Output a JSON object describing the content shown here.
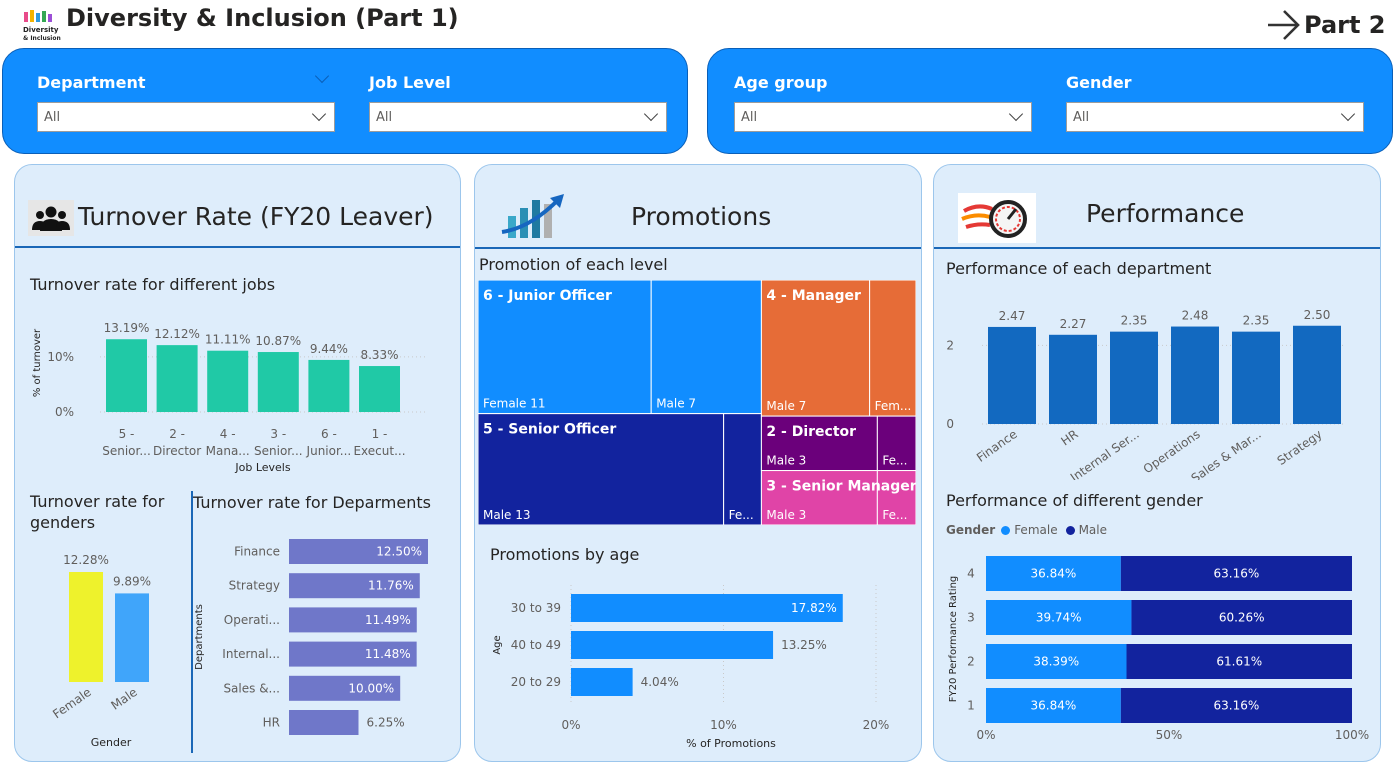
{
  "header": {
    "title": "Diversity & Inclusion (Part 1)",
    "logo_text_1": "Diversity",
    "logo_text_2": "& Inclusion",
    "nav_label": "Part 2"
  },
  "slicers": [
    {
      "label": "Department",
      "value": "All"
    },
    {
      "label": "Job Level",
      "value": "All"
    },
    {
      "label": "Age group",
      "value": "All"
    },
    {
      "label": "Gender",
      "value": "All"
    }
  ],
  "cards": {
    "turnover_title": "Turnover Rate (FY20 Leaver)",
    "promotions_title": "Promotions",
    "performance_title": "Performance"
  },
  "chart_data": [
    {
      "id": "turnover_jobs",
      "type": "bar",
      "title": "Turnover rate for different jobs",
      "categories": [
        [
          "5 -",
          "Senior..."
        ],
        [
          "2 -",
          "Director"
        ],
        [
          "4 -",
          "Mana..."
        ],
        [
          "3 -",
          "Senior..."
        ],
        [
          "6 -",
          "Junior..."
        ],
        [
          "1 -",
          "Execut..."
        ]
      ],
      "values": [
        13.19,
        12.12,
        11.11,
        10.87,
        9.44,
        8.33
      ],
      "labels": [
        "13.19%",
        "12.12%",
        "11.11%",
        "10.87%",
        "9.44%",
        "8.33%"
      ],
      "xlabel": "Job Levels",
      "ylabel": "% of turnover",
      "yticks": [
        {
          "v": 0,
          "label": "0%"
        },
        {
          "v": 10,
          "label": "10%"
        }
      ],
      "ylim": [
        0,
        14.5
      ],
      "color": "#20c9a6"
    },
    {
      "id": "turnover_gender",
      "type": "bar",
      "title": "Turnover rate for genders",
      "categories": [
        "Female",
        "Male"
      ],
      "values": [
        12.28,
        9.89
      ],
      "labels": [
        "12.28%",
        "9.89%"
      ],
      "colors": [
        "#eef22c",
        "#40a5fa"
      ],
      "xlabel": "Gender",
      "ylim": [
        0,
        12.28
      ]
    },
    {
      "id": "turnover_departments",
      "type": "bar",
      "orientation": "horizontal",
      "title": "Turnover rate for Deparments",
      "categories": [
        "Finance",
        "Strategy",
        "Operati...",
        "Internal...",
        "Sales &...",
        "HR"
      ],
      "values": [
        12.5,
        11.76,
        11.49,
        11.48,
        10.0,
        6.25
      ],
      "labels": [
        "12.50%",
        "11.76%",
        "11.49%",
        "11.48%",
        "10.00%",
        "6.25%"
      ],
      "ylabel": "Departments",
      "xlim": [
        0,
        12.5
      ],
      "color": "#6f77c9"
    },
    {
      "id": "promotion_levels",
      "type": "treemap",
      "title": "Promotion of each level",
      "groups": [
        {
          "name": "6 - Junior Officer",
          "color": "#118dff",
          "items": [
            {
              "label": "Female 11",
              "value": 11
            },
            {
              "label": "Male 7",
              "value": 7
            }
          ]
        },
        {
          "name": "5 - Senior Officer",
          "color": "#12239e",
          "items": [
            {
              "label": "Male 13",
              "value": 13
            },
            {
              "label": "Fe...",
              "value": 2
            }
          ]
        },
        {
          "name": "4 - Manager",
          "color": "#e66c37",
          "items": [
            {
              "label": "Male 7",
              "value": 7
            },
            {
              "label": "Fem...",
              "value": 3
            }
          ]
        },
        {
          "name": "2 - Director",
          "color": "#6b007b",
          "items": [
            {
              "label": "Male 3",
              "value": 3
            },
            {
              "label": "Fe...",
              "value": 1
            }
          ]
        },
        {
          "name": "3 - Senior Manager",
          "color": "#e044a7",
          "items": [
            {
              "label": "Male 3",
              "value": 3
            },
            {
              "label": "Fe...",
              "value": 1
            }
          ]
        }
      ]
    },
    {
      "id": "promotions_age",
      "type": "bar",
      "orientation": "horizontal",
      "title": "Promotions by age",
      "categories": [
        "30 to 39",
        "40 to 49",
        "20 to 29"
      ],
      "values": [
        17.82,
        13.25,
        4.04
      ],
      "labels": [
        "17.82%",
        "13.25%",
        "4.04%"
      ],
      "xlabel": "% of Promotions",
      "ylabel": "Age",
      "xticks": [
        {
          "v": 0,
          "label": "0%"
        },
        {
          "v": 10,
          "label": "10%"
        },
        {
          "v": 20,
          "label": "20%"
        }
      ],
      "xlim": [
        0,
        20
      ],
      "color": "#118dff"
    },
    {
      "id": "performance_department",
      "type": "bar",
      "title": "Performance of each department",
      "categories": [
        "Finance",
        "HR",
        "Internal Ser...",
        "Operations",
        "Sales & Mar...",
        "Strategy"
      ],
      "values": [
        2.47,
        2.27,
        2.35,
        2.48,
        2.35,
        2.5
      ],
      "labels": [
        "2.47",
        "2.27",
        "2.35",
        "2.48",
        "2.35",
        "2.50"
      ],
      "yticks": [
        {
          "v": 0,
          "label": "0"
        },
        {
          "v": 2,
          "label": "2"
        }
      ],
      "ylim": [
        0,
        2.85
      ],
      "color": "#1269c0"
    },
    {
      "id": "performance_gender",
      "type": "bar",
      "orientation": "horizontal",
      "stacked": "percent",
      "title": "Performance of different gender",
      "legend": {
        "title": "Gender",
        "entries": [
          {
            "name": "Female",
            "color": "#118dff"
          },
          {
            "name": "Male",
            "color": "#12239e"
          }
        ]
      },
      "categories": [
        "4",
        "3",
        "2",
        "1"
      ],
      "series": [
        {
          "name": "Female",
          "values": [
            36.84,
            39.74,
            38.39,
            36.84
          ],
          "labels": [
            "36.84%",
            "39.74%",
            "38.39%",
            "36.84%"
          ]
        },
        {
          "name": "Male",
          "values": [
            63.16,
            60.26,
            61.61,
            63.16
          ],
          "labels": [
            "63.16%",
            "60.26%",
            "61.61%",
            "63.16%"
          ]
        }
      ],
      "ylabel": "FY20 Performance Rating",
      "xticks": [
        {
          "v": 0,
          "label": "0%"
        },
        {
          "v": 50,
          "label": "50%"
        },
        {
          "v": 100,
          "label": "100%"
        }
      ],
      "xlim": [
        0,
        100
      ]
    }
  ]
}
